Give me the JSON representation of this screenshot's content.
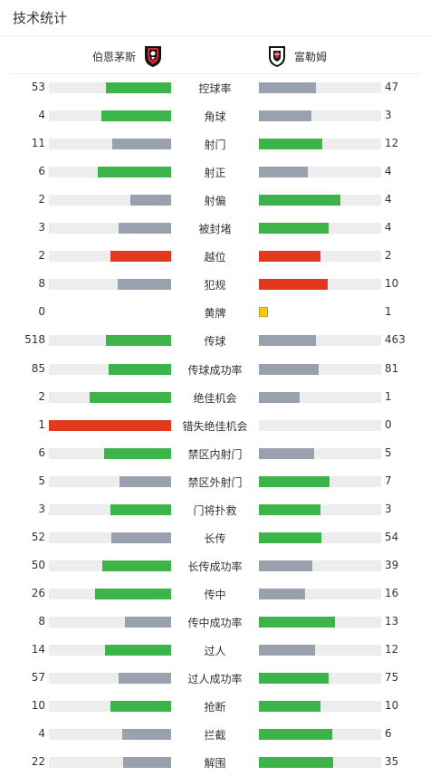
{
  "header": {
    "title": "技术统计"
  },
  "teams": {
    "home": {
      "name": "伯恩茅斯",
      "crest": "bournemouth-crest-icon"
    },
    "away": {
      "name": "富勒姆",
      "crest": "fulham-crest-icon"
    }
  },
  "colors": {
    "green": "#3cb44a",
    "gray": "#9aa1ae",
    "red": "#e0391e",
    "yellow": "#f5c518",
    "track": "#ededed"
  },
  "stats": [
    {
      "label": "控球率",
      "home": "53",
      "away": "47",
      "home_fill": 0.53,
      "away_fill": 0.47,
      "home_color": "green",
      "away_color": "gray"
    },
    {
      "label": "角球",
      "home": "4",
      "away": "3",
      "home_fill": 0.57,
      "away_fill": 0.43,
      "home_color": "green",
      "away_color": "gray"
    },
    {
      "label": "射门",
      "home": "11",
      "away": "12",
      "home_fill": 0.48,
      "away_fill": 0.52,
      "home_color": "gray",
      "away_color": "green"
    },
    {
      "label": "射正",
      "home": "6",
      "away": "4",
      "home_fill": 0.6,
      "away_fill": 0.4,
      "home_color": "green",
      "away_color": "gray"
    },
    {
      "label": "射偏",
      "home": "2",
      "away": "4",
      "home_fill": 0.33,
      "away_fill": 0.67,
      "home_color": "gray",
      "away_color": "green"
    },
    {
      "label": "被封堵",
      "home": "3",
      "away": "4",
      "home_fill": 0.43,
      "away_fill": 0.57,
      "home_color": "gray",
      "away_color": "green"
    },
    {
      "label": "越位",
      "home": "2",
      "away": "2",
      "home_fill": 0.5,
      "away_fill": 0.5,
      "home_color": "red",
      "away_color": "red"
    },
    {
      "label": "犯规",
      "home": "8",
      "away": "10",
      "home_fill": 0.44,
      "away_fill": 0.56,
      "home_color": "gray",
      "away_color": "red"
    },
    {
      "label": "黄牌",
      "home": "0",
      "away": "1",
      "home_fill": 0,
      "away_fill": 0.08,
      "home_color": "yellow",
      "away_color": "yellow"
    },
    {
      "label": "传球",
      "home": "518",
      "away": "463",
      "home_fill": 0.53,
      "away_fill": 0.47,
      "home_color": "green",
      "away_color": "gray"
    },
    {
      "label": "传球成功率",
      "home": "85",
      "away": "81",
      "home_fill": 0.51,
      "away_fill": 0.49,
      "home_color": "green",
      "away_color": "gray"
    },
    {
      "label": "绝佳机会",
      "home": "2",
      "away": "1",
      "home_fill": 0.67,
      "away_fill": 0.33,
      "home_color": "green",
      "away_color": "gray"
    },
    {
      "label": "错失绝佳机会",
      "home": "1",
      "away": "0",
      "home_fill": 1.0,
      "away_fill": 0,
      "home_color": "red",
      "away_color": "red"
    },
    {
      "label": "禁区内射门",
      "home": "6",
      "away": "5",
      "home_fill": 0.55,
      "away_fill": 0.45,
      "home_color": "green",
      "away_color": "gray"
    },
    {
      "label": "禁区外射门",
      "home": "5",
      "away": "7",
      "home_fill": 0.42,
      "away_fill": 0.58,
      "home_color": "gray",
      "away_color": "green"
    },
    {
      "label": "门将扑救",
      "home": "3",
      "away": "3",
      "home_fill": 0.5,
      "away_fill": 0.5,
      "home_color": "green",
      "away_color": "green"
    },
    {
      "label": "长传",
      "home": "52",
      "away": "54",
      "home_fill": 0.49,
      "away_fill": 0.51,
      "home_color": "gray",
      "away_color": "green"
    },
    {
      "label": "长传成功率",
      "home": "50",
      "away": "39",
      "home_fill": 0.56,
      "away_fill": 0.44,
      "home_color": "green",
      "away_color": "gray"
    },
    {
      "label": "传中",
      "home": "26",
      "away": "16",
      "home_fill": 0.62,
      "away_fill": 0.38,
      "home_color": "green",
      "away_color": "gray"
    },
    {
      "label": "传中成功率",
      "home": "8",
      "away": "13",
      "home_fill": 0.38,
      "away_fill": 0.62,
      "home_color": "gray",
      "away_color": "green"
    },
    {
      "label": "过人",
      "home": "14",
      "away": "12",
      "home_fill": 0.54,
      "away_fill": 0.46,
      "home_color": "green",
      "away_color": "gray"
    },
    {
      "label": "过人成功率",
      "home": "57",
      "away": "75",
      "home_fill": 0.43,
      "away_fill": 0.57,
      "home_color": "gray",
      "away_color": "green"
    },
    {
      "label": "抢断",
      "home": "10",
      "away": "10",
      "home_fill": 0.5,
      "away_fill": 0.5,
      "home_color": "green",
      "away_color": "green"
    },
    {
      "label": "拦截",
      "home": "4",
      "away": "6",
      "home_fill": 0.4,
      "away_fill": 0.6,
      "home_color": "gray",
      "away_color": "green"
    },
    {
      "label": "解围",
      "home": "22",
      "away": "35",
      "home_fill": 0.39,
      "away_fill": 0.61,
      "home_color": "gray",
      "away_color": "green"
    }
  ]
}
